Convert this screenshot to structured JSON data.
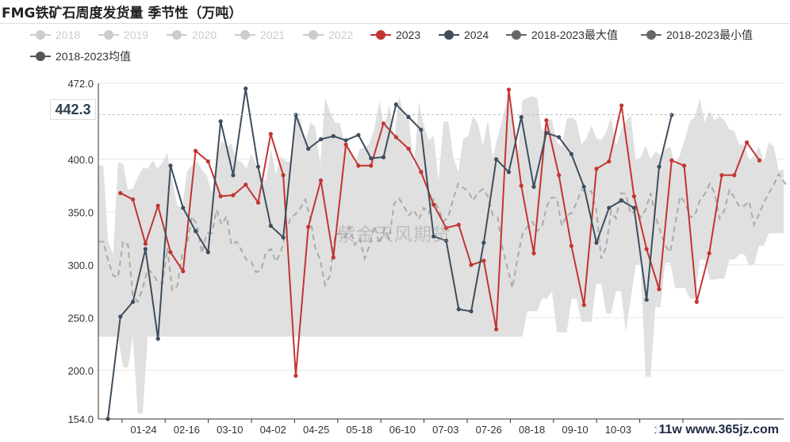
{
  "title": "FMG铁矿石周度发货量 季节性（万吨）",
  "watermark": "紫金天风期货",
  "site_mark": "11w www.365jz.com",
  "highlight_value": "442.3",
  "colors": {
    "inactive": "#cccccc",
    "s2023": "#c23531",
    "s2024": "#3e4e5e",
    "max": "#666666",
    "min": "#666666",
    "avg": "#555555",
    "band": "#e0e0e0"
  },
  "chart_data": {
    "type": "line",
    "ylim": [
      154,
      472
    ],
    "yticks": [
      "154.0",
      "200.0",
      "250.0",
      "300.0",
      "350.0",
      "400.0",
      "472.0"
    ],
    "ytick_values": [
      154,
      200,
      250,
      300,
      350,
      400,
      472
    ],
    "xtick_labels": [
      "01-24",
      "02-16",
      "03-10",
      "04-02",
      "04-25",
      "05-18",
      "06-10",
      "07-03",
      "07-26",
      "08-18",
      "09-10",
      "10-03",
      "10-"
    ],
    "legend": [
      {
        "name": "2018",
        "active": false
      },
      {
        "name": "2019",
        "active": false
      },
      {
        "name": "2020",
        "active": false
      },
      {
        "name": "2021",
        "active": false
      },
      {
        "name": "2022",
        "active": false
      },
      {
        "name": "2023",
        "active": true,
        "color": "#c23531"
      },
      {
        "name": "2024",
        "active": true,
        "color": "#3e4e5e"
      },
      {
        "name": "2018-2023最大值",
        "active": true,
        "color": "#666666"
      },
      {
        "name": "2018-2023最小值",
        "active": true,
        "color": "#666666"
      },
      {
        "name": "2018-2023均值",
        "active": true,
        "color": "#555555"
      }
    ],
    "series": [
      {
        "name": "2023",
        "x_start": 1,
        "values": [
          368,
          362,
          320,
          356,
          312,
          294,
          408,
          398,
          365,
          366,
          376,
          359,
          424,
          385,
          195,
          336,
          380,
          307,
          414,
          394,
          394,
          434,
          421,
          410,
          388,
          357,
          335,
          338,
          300,
          304,
          239,
          466,
          375,
          311,
          437,
          385,
          318,
          262,
          391,
          398,
          451,
          365,
          315,
          277,
          399,
          394,
          265,
          311,
          385,
          385,
          416,
          399
        ]
      },
      {
        "name": "2024",
        "x_start": 0,
        "values": [
          154,
          251,
          265,
          315,
          230,
          394,
          354,
          332,
          312,
          436,
          385,
          467,
          393,
          337,
          326,
          442,
          410,
          419,
          422,
          418,
          423,
          401,
          402,
          452,
          440,
          428,
          327,
          323,
          258,
          256,
          321,
          400,
          388,
          440,
          374,
          425,
          421,
          405,
          374,
          321,
          354,
          361,
          354,
          267,
          393,
          442
        ]
      },
      {
        "name": "2018-2023最大值",
        "x_start": 0,
        "values": [
          394,
          394,
          322,
          310,
          397,
          396,
          371,
          372,
          383,
          392,
          391,
          399,
          391,
          397,
          406,
          380,
          356,
          354,
          389,
          394,
          398,
          390,
          385,
          368,
          401,
          418,
          412,
          415,
          399,
          398,
          391,
          405,
          395,
          380,
          380,
          410,
          386,
          403,
          398,
          398,
          443,
          438,
          416,
          435,
          431,
          395,
          458,
          445,
          435,
          434,
          413,
          410,
          396,
          410,
          411,
          415,
          430,
          456,
          430,
          452,
          420,
          460,
          441,
          438,
          391,
          454,
          433,
          418,
          422,
          380,
          436,
          436,
          402,
          388,
          420,
          422,
          441,
          434,
          413,
          437,
          402,
          421,
          439,
          457,
          440,
          401,
          456,
          458,
          460,
          458,
          426,
          437,
          438,
          416,
          412,
          438,
          440,
          436,
          414,
          420,
          432,
          420,
          418,
          426,
          440,
          412,
          428,
          436,
          442,
          399,
          402,
          413,
          400,
          408,
          404,
          410,
          412,
          394,
          405,
          420,
          436,
          440,
          458,
          435,
          446,
          437,
          441,
          437,
          428,
          427,
          414,
          414,
          399,
          403,
          412,
          398,
          416,
          412,
          389,
          391
        ]
      },
      {
        "name": "2018-2023最小值",
        "x_start": 0,
        "values": [
          232,
          232,
          232,
          232,
          232,
          203,
          203,
          232,
          159,
          159,
          232,
          232,
          232,
          232,
          232,
          232,
          232,
          232,
          232,
          232,
          232,
          232,
          232,
          232,
          232,
          232,
          232,
          232,
          232,
          232,
          232,
          232,
          232,
          232,
          232,
          232,
          232,
          232,
          232,
          232,
          232,
          232,
          232,
          232,
          232,
          232,
          232,
          232,
          232,
          232,
          232,
          232,
          232,
          232,
          232,
          232,
          232,
          232,
          232,
          232,
          232,
          232,
          232,
          232,
          232,
          232,
          232,
          232,
          232,
          232,
          232,
          232,
          232,
          232,
          232,
          232,
          232,
          232,
          232,
          232,
          232,
          232,
          232,
          232,
          232,
          232,
          232,
          256,
          256,
          256,
          268,
          268,
          275,
          236,
          236,
          236,
          268,
          268,
          246,
          246,
          246,
          282,
          282,
          254,
          254,
          275,
          275,
          236,
          268,
          300,
          300,
          194,
          194,
          260,
          260,
          302,
          302,
          278,
          278,
          278,
          268,
          268,
          305,
          305,
          286,
          286,
          287,
          287,
          305,
          305,
          310,
          310,
          300,
          300,
          318,
          318,
          330,
          330,
          330,
          330
        ]
      },
      {
        "name": "2018-2023均值",
        "x_start": 0,
        "values": [
          322,
          322,
          304,
          290,
          288,
          322,
          319,
          271,
          265,
          278,
          296,
          292,
          284,
          282,
          316,
          276,
          280,
          309,
          320,
          346,
          338,
          311,
          330,
          330,
          352,
          338,
          346,
          319,
          322,
          314,
          305,
          303,
          293,
          295,
          312,
          315,
          303,
          312,
          329,
          345,
          348,
          354,
          362,
          343,
          316,
          305,
          281,
          290,
          328,
          330,
          326,
          336,
          319,
          325,
          306,
          318,
          337,
          320,
          334,
          325,
          358,
          363,
          355,
          347,
          352,
          343,
          354,
          349,
          362,
          353,
          341,
          346,
          363,
          377,
          373,
          370,
          361,
          368,
          372,
          365,
          347,
          345,
          315,
          297,
          278,
          306,
          329,
          336,
          341,
          332,
          337,
          356,
          364,
          363,
          337,
          347,
          349,
          359,
          371,
          369,
          370,
          352,
          306,
          317,
          351,
          344,
          368,
          367,
          348,
          352,
          345,
          352,
          368,
          346,
          332,
          318,
          312,
          339,
          365,
          359,
          345,
          347,
          361,
          367,
          377,
          368,
          344,
          352,
          371,
          364,
          355,
          356,
          360,
          338,
          348,
          359,
          368,
          376,
          386,
          379,
          373
        ]
      }
    ],
    "band_from_series": [
      "2018-2023最小值",
      "2018-2023最大值"
    ],
    "band_points": 140,
    "x_points": 55
  }
}
